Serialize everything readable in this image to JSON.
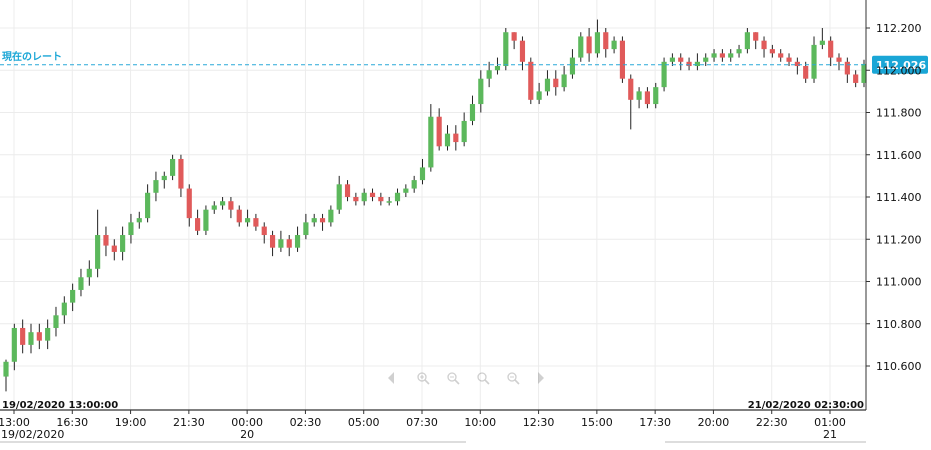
{
  "chart_data": {
    "type": "candlestick",
    "title": "",
    "current_rate_label": "現在のレート",
    "current_rate": 112.026,
    "current_rate_text": "112.026",
    "ylim": [
      110.48,
      112.28
    ],
    "y_ticks": [
      "112.200",
      "112.000",
      "111.800",
      "111.600",
      "111.400",
      "111.200",
      "111.000",
      "110.800",
      "110.600"
    ],
    "y_tick_values": [
      112.2,
      112.0,
      111.8,
      111.6,
      111.4,
      111.2,
      111.0,
      110.8,
      110.6
    ],
    "x_ticks": [
      "13:00",
      "16:30",
      "19:00",
      "21:30",
      "00:00",
      "02:30",
      "05:00",
      "07:30",
      "10:00",
      "12:30",
      "15:00",
      "17:30",
      "20:00",
      "22:30",
      "01:00"
    ],
    "x_date_labels": [
      {
        "text": "19/02/2020",
        "under": 0
      },
      {
        "text": "20",
        "under": 4
      },
      {
        "text": "21",
        "under": 14
      }
    ],
    "range_start": "19/02/2020 13:00:00",
    "range_end": "21/02/2020 02:30:00",
    "up_color": "#5cb85c",
    "down_color": "#e05a5a",
    "grid": true,
    "candles": [
      [
        110.55,
        110.62,
        110.48,
        110.63
      ],
      [
        110.62,
        110.78,
        110.58,
        110.8
      ],
      [
        110.78,
        110.7,
        110.66,
        110.82
      ],
      [
        110.7,
        110.76,
        110.66,
        110.8
      ],
      [
        110.76,
        110.72,
        110.68,
        110.8
      ],
      [
        110.72,
        110.78,
        110.68,
        110.82
      ],
      [
        110.78,
        110.84,
        110.74,
        110.88
      ],
      [
        110.84,
        110.9,
        110.8,
        110.93
      ],
      [
        110.9,
        110.96,
        110.86,
        110.99
      ],
      [
        110.96,
        111.02,
        110.93,
        111.06
      ],
      [
        111.02,
        111.06,
        110.98,
        111.1
      ],
      [
        111.06,
        111.22,
        111.02,
        111.34
      ],
      [
        111.22,
        111.17,
        111.12,
        111.26
      ],
      [
        111.17,
        111.14,
        111.1,
        111.2
      ],
      [
        111.14,
        111.22,
        111.1,
        111.26
      ],
      [
        111.22,
        111.28,
        111.18,
        111.32
      ],
      [
        111.28,
        111.3,
        111.25,
        111.33
      ],
      [
        111.3,
        111.42,
        111.28,
        111.46
      ],
      [
        111.42,
        111.48,
        111.38,
        111.52
      ],
      [
        111.48,
        111.5,
        111.44,
        111.52
      ],
      [
        111.5,
        111.58,
        111.48,
        111.6
      ],
      [
        111.58,
        111.44,
        111.4,
        111.6
      ],
      [
        111.44,
        111.3,
        111.26,
        111.46
      ],
      [
        111.3,
        111.24,
        111.22,
        111.34
      ],
      [
        111.24,
        111.34,
        111.22,
        111.36
      ],
      [
        111.34,
        111.36,
        111.32,
        111.38
      ],
      [
        111.36,
        111.38,
        111.34,
        111.4
      ],
      [
        111.38,
        111.34,
        111.3,
        111.4
      ],
      [
        111.34,
        111.28,
        111.26,
        111.36
      ],
      [
        111.28,
        111.3,
        111.26,
        111.34
      ],
      [
        111.3,
        111.26,
        111.24,
        111.32
      ],
      [
        111.26,
        111.22,
        111.18,
        111.28
      ],
      [
        111.22,
        111.16,
        111.12,
        111.24
      ],
      [
        111.16,
        111.2,
        111.14,
        111.24
      ],
      [
        111.2,
        111.16,
        111.12,
        111.22
      ],
      [
        111.16,
        111.22,
        111.14,
        111.26
      ],
      [
        111.22,
        111.28,
        111.2,
        111.32
      ],
      [
        111.28,
        111.3,
        111.26,
        111.32
      ],
      [
        111.3,
        111.28,
        111.24,
        111.32
      ],
      [
        111.28,
        111.34,
        111.26,
        111.36
      ],
      [
        111.34,
        111.46,
        111.32,
        111.5
      ],
      [
        111.46,
        111.4,
        111.38,
        111.48
      ],
      [
        111.4,
        111.38,
        111.36,
        111.42
      ],
      [
        111.38,
        111.42,
        111.36,
        111.44
      ],
      [
        111.42,
        111.4,
        111.38,
        111.44
      ],
      [
        111.4,
        111.38,
        111.36,
        111.42
      ],
      [
        111.38,
        111.38,
        111.36,
        111.4
      ],
      [
        111.38,
        111.42,
        111.36,
        111.44
      ],
      [
        111.42,
        111.44,
        111.4,
        111.46
      ],
      [
        111.44,
        111.48,
        111.42,
        111.5
      ],
      [
        111.48,
        111.54,
        111.46,
        111.58
      ],
      [
        111.54,
        111.78,
        111.52,
        111.84
      ],
      [
        111.78,
        111.64,
        111.62,
        111.82
      ],
      [
        111.64,
        111.7,
        111.62,
        111.74
      ],
      [
        111.7,
        111.66,
        111.62,
        111.74
      ],
      [
        111.66,
        111.76,
        111.64,
        111.8
      ],
      [
        111.76,
        111.84,
        111.74,
        111.88
      ],
      [
        111.84,
        111.96,
        111.8,
        112.0
      ],
      [
        111.96,
        112.0,
        111.92,
        112.04
      ],
      [
        112.0,
        112.02,
        111.98,
        112.06
      ],
      [
        112.02,
        112.18,
        112.0,
        112.2
      ],
      [
        112.18,
        112.14,
        112.1,
        112.18
      ],
      [
        112.14,
        112.04,
        112.0,
        112.16
      ],
      [
        112.04,
        111.86,
        111.84,
        112.06
      ],
      [
        111.86,
        111.9,
        111.84,
        111.94
      ],
      [
        111.9,
        111.96,
        111.88,
        112.0
      ],
      [
        111.96,
        111.92,
        111.88,
        112.0
      ],
      [
        111.92,
        111.98,
        111.9,
        112.02
      ],
      [
        111.98,
        112.06,
        111.96,
        112.1
      ],
      [
        112.06,
        112.16,
        112.04,
        112.18
      ],
      [
        112.16,
        112.08,
        112.04,
        112.2
      ],
      [
        112.08,
        112.18,
        112.06,
        112.24
      ],
      [
        112.18,
        112.1,
        112.06,
        112.2
      ],
      [
        112.1,
        112.14,
        112.08,
        112.16
      ],
      [
        112.14,
        111.96,
        111.94,
        112.16
      ],
      [
        111.96,
        111.86,
        111.72,
        111.98
      ],
      [
        111.86,
        111.9,
        111.82,
        111.92
      ],
      [
        111.9,
        111.84,
        111.82,
        111.92
      ],
      [
        111.84,
        111.92,
        111.82,
        111.94
      ],
      [
        111.92,
        112.04,
        111.9,
        112.06
      ],
      [
        112.04,
        112.06,
        112.02,
        112.08
      ],
      [
        112.06,
        112.04,
        112.0,
        112.08
      ],
      [
        112.04,
        112.02,
        112.0,
        112.06
      ],
      [
        112.02,
        112.04,
        112.0,
        112.08
      ],
      [
        112.04,
        112.06,
        112.02,
        112.08
      ],
      [
        112.06,
        112.08,
        112.04,
        112.1
      ],
      [
        112.08,
        112.06,
        112.04,
        112.1
      ],
      [
        112.06,
        112.08,
        112.04,
        112.1
      ],
      [
        112.08,
        112.1,
        112.06,
        112.12
      ],
      [
        112.1,
        112.18,
        112.08,
        112.2
      ],
      [
        112.18,
        112.14,
        112.1,
        112.18
      ],
      [
        112.14,
        112.1,
        112.06,
        112.16
      ],
      [
        112.1,
        112.08,
        112.06,
        112.12
      ],
      [
        112.08,
        112.06,
        112.04,
        112.1
      ],
      [
        112.06,
        112.04,
        112.02,
        112.08
      ],
      [
        112.04,
        112.02,
        111.98,
        112.06
      ],
      [
        112.02,
        111.96,
        111.94,
        112.04
      ],
      [
        111.96,
        112.12,
        111.94,
        112.16
      ],
      [
        112.12,
        112.14,
        112.1,
        112.2
      ],
      [
        112.14,
        112.06,
        112.02,
        112.16
      ],
      [
        112.06,
        112.04,
        112.0,
        112.08
      ],
      [
        112.04,
        111.98,
        111.94,
        112.06
      ],
      [
        111.98,
        111.94,
        111.92,
        112.0
      ],
      [
        111.94,
        112.03,
        111.92,
        112.05
      ]
    ]
  },
  "toolbar": {
    "icons": [
      "pan-left-icon",
      "zoom-in-icon",
      "zoom-out-icon",
      "zoom-fit-icon",
      "zoom-reset-icon",
      "pan-right-icon"
    ]
  }
}
